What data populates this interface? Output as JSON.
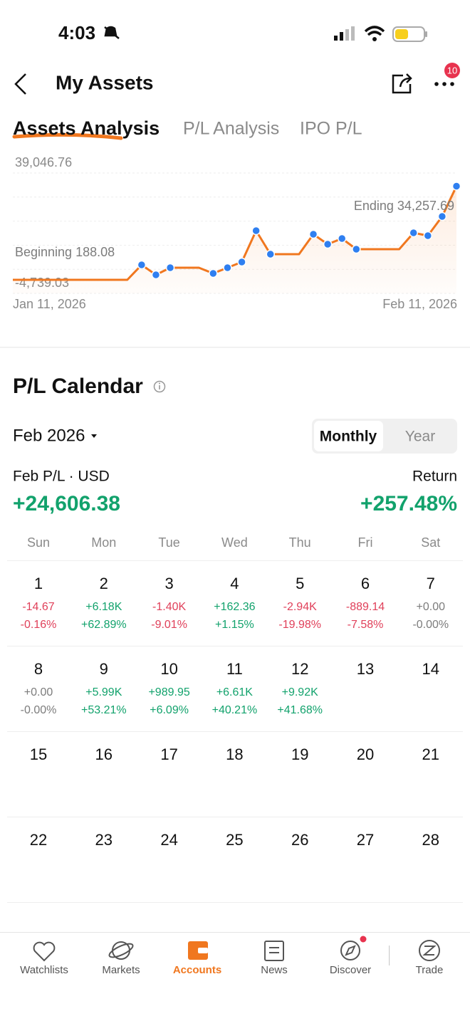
{
  "status_bar": {
    "time": "4:03"
  },
  "header": {
    "title": "My Assets",
    "badge": "10"
  },
  "tabs": [
    "Assets Analysis",
    "P/L Analysis",
    "IPO P/L"
  ],
  "chart_data": {
    "type": "line",
    "categories": [
      "Jan 11, 2026",
      null,
      null,
      null,
      null,
      null,
      null,
      null,
      null,
      null,
      null,
      null,
      null,
      null,
      null,
      null,
      null,
      null,
      null,
      null,
      null,
      null,
      null,
      null,
      null,
      null,
      null,
      null,
      null,
      null,
      null,
      "Feb 11, 2026"
    ],
    "series": [
      {
        "color": "#f0771f",
        "values": [
          188.08,
          188.08,
          188.08,
          188.08,
          188.08,
          188.08,
          188.08,
          188.08,
          188.08,
          5624,
          1997,
          4588,
          4588,
          4588,
          2515,
          4588,
          6660,
          18060,
          9511,
          9511,
          9511,
          16765,
          13138,
          15211,
          11324,
          11324,
          11324,
          11324,
          17283,
          16247,
          23242,
          34257.69
        ]
      }
    ],
    "ylim": [
      -4739.03,
      39046.76
    ],
    "yticks": [
      {
        "value": -4739.03,
        "label": "-4,739.03"
      },
      {
        "value": 39046.76,
        "label": "39,046.76"
      }
    ],
    "annotations": [
      "Beginning 188.08",
      "Ending 34,257.69"
    ],
    "marker_color": "#2f7ff0"
  },
  "calendar": {
    "title": "P/L Calendar",
    "month": "Feb 2026",
    "toggle": [
      "Monthly",
      "Year"
    ],
    "pl_label": "Feb P/L · USD",
    "pl_value": "+24,606.38",
    "return_label": "Return",
    "return_value": "+257.48%",
    "weekdays": [
      "Sun",
      "Mon",
      "Tue",
      "Wed",
      "Thu",
      "Fri",
      "Sat"
    ],
    "weeks": [
      [
        {
          "day": 1,
          "pl": "-14.67",
          "ret": "-0.16%"
        },
        {
          "day": 2,
          "pl": "+6.18K",
          "ret": "+62.89%"
        },
        {
          "day": 3,
          "pl": "-1.40K",
          "ret": "-9.01%"
        },
        {
          "day": 4,
          "pl": "+162.36",
          "ret": "+1.15%"
        },
        {
          "day": 5,
          "pl": "-2.94K",
          "ret": "-19.98%"
        },
        {
          "day": 6,
          "pl": "-889.14",
          "ret": "-7.58%"
        },
        {
          "day": 7,
          "pl": "+0.00",
          "ret": "-0.00%"
        }
      ],
      [
        {
          "day": 8,
          "pl": "+0.00",
          "ret": "-0.00%"
        },
        {
          "day": 9,
          "pl": "+5.99K",
          "ret": "+53.21%"
        },
        {
          "day": 10,
          "pl": "+989.95",
          "ret": "+6.09%"
        },
        {
          "day": 11,
          "pl": "+6.61K",
          "ret": "+40.21%"
        },
        {
          "day": 12,
          "pl": "+9.92K",
          "ret": "+41.68%"
        },
        {
          "day": 13
        },
        {
          "day": 14
        }
      ],
      [
        {
          "day": 15
        },
        {
          "day": 16
        },
        {
          "day": 17
        },
        {
          "day": 18
        },
        {
          "day": 19
        },
        {
          "day": 20
        },
        {
          "day": 21
        }
      ],
      [
        {
          "day": 22
        },
        {
          "day": 23
        },
        {
          "day": 24
        },
        {
          "day": 25
        },
        {
          "day": 26
        },
        {
          "day": 27
        },
        {
          "day": 28
        }
      ]
    ]
  },
  "nav": [
    "Watchlists",
    "Markets",
    "Accounts",
    "News",
    "Discover",
    "Trade"
  ]
}
